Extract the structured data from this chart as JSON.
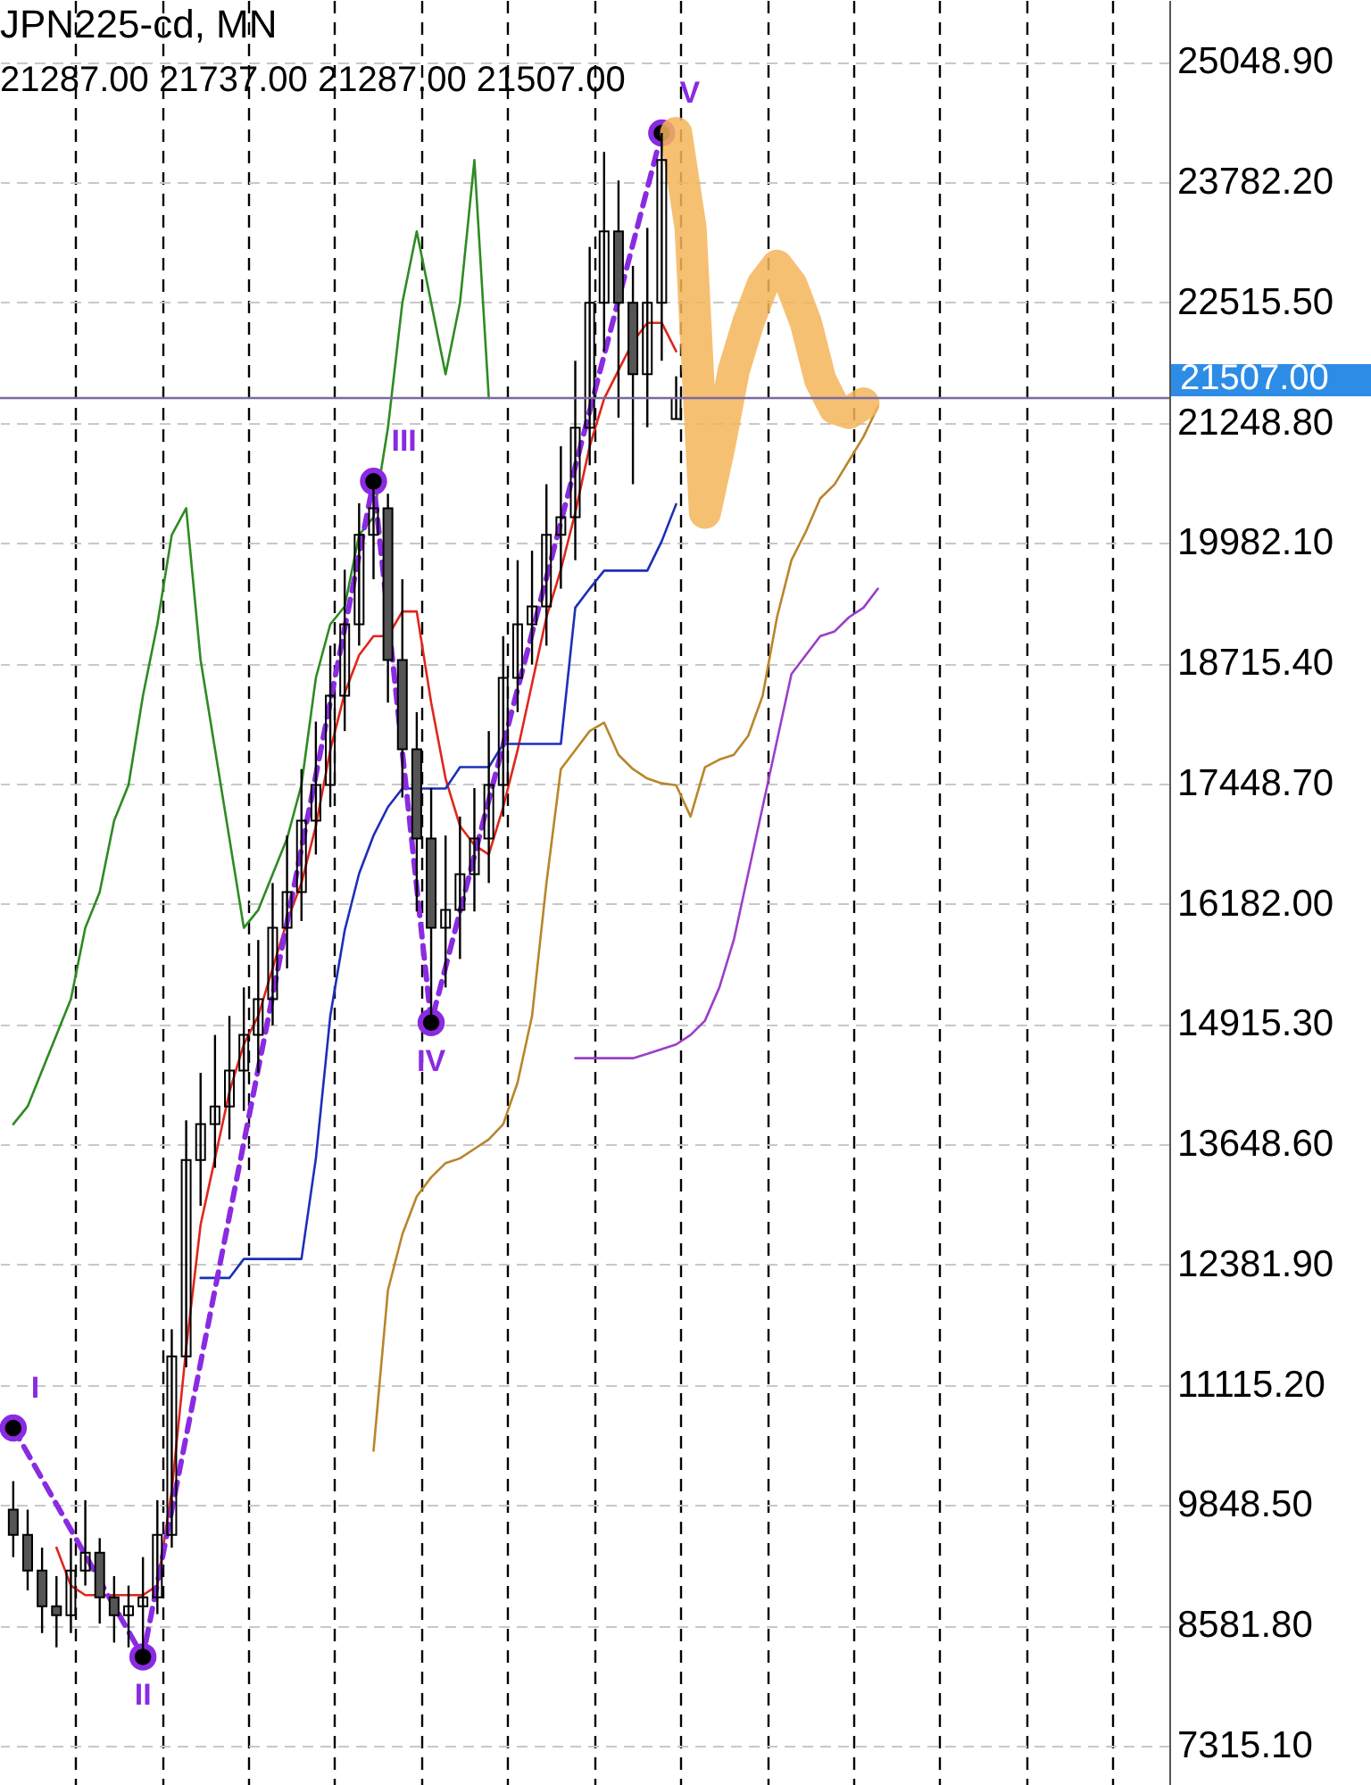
{
  "chart_data": {
    "type": "candlestick",
    "title": "JPN225-cd, MN",
    "subtitle": "21287.00 21737.00 21287.00 21507.00",
    "categories": [
      null,
      null,
      null,
      null,
      null,
      null,
      null,
      null,
      null,
      null,
      null,
      null,
      null,
      null,
      null,
      null,
      null,
      null,
      null,
      null,
      null,
      null,
      null,
      null,
      null,
      null,
      null,
      null,
      null,
      null,
      null,
      null,
      null,
      null,
      null,
      null,
      null,
      null,
      null,
      null,
      null,
      null,
      null,
      null,
      null,
      null,
      null,
      null,
      null,
      null,
      null,
      null,
      null,
      null,
      null,
      null,
      null,
      null,
      null,
      null,
      null,
      null,
      null,
      null,
      null,
      null,
      null,
      null,
      null,
      null,
      null,
      null,
      null,
      null,
      null,
      null,
      null,
      null,
      null,
      null
    ],
    "ohlc": [
      [
        9800,
        10100,
        9300,
        9534
      ],
      [
        9534,
        9800,
        8950,
        9158
      ],
      [
        9158,
        9400,
        8500,
        8782
      ],
      [
        8782,
        9100,
        8350,
        8688
      ],
      [
        8688,
        9500,
        8500,
        9158
      ],
      [
        9158,
        9900,
        9000,
        9346
      ],
      [
        9346,
        9500,
        8600,
        8876
      ],
      [
        8876,
        9100,
        8400,
        8688
      ],
      [
        8688,
        9000,
        8350,
        8782
      ],
      [
        8782,
        9300,
        8250,
        8876
      ],
      [
        8876,
        9900,
        8700,
        9534
      ],
      [
        9534,
        11700,
        9400,
        11415
      ],
      [
        11415,
        13900,
        11300,
        13483
      ],
      [
        13483,
        14400,
        13000,
        13860
      ],
      [
        13860,
        14800,
        13400,
        14047
      ],
      [
        14047,
        15000,
        13700,
        14424
      ],
      [
        14424,
        15300,
        14000,
        14800
      ],
      [
        14800,
        15800,
        14400,
        15176
      ],
      [
        15176,
        16400,
        14900,
        15928
      ],
      [
        15928,
        16900,
        15500,
        16304
      ],
      [
        16304,
        17600,
        16000,
        17056
      ],
      [
        17056,
        18100,
        16700,
        17433
      ],
      [
        17433,
        18900,
        17200,
        18373
      ],
      [
        18373,
        19700,
        18000,
        19125
      ],
      [
        19125,
        20400,
        18900,
        20066
      ],
      [
        20066,
        20630,
        19600,
        20347
      ],
      [
        20347,
        20500,
        18300,
        18749
      ],
      [
        18749,
        19600,
        17300,
        17809
      ],
      [
        17809,
        18200,
        16100,
        16868
      ],
      [
        16868,
        17400,
        14930,
        15928
      ],
      [
        15928,
        16900,
        15300,
        16116
      ],
      [
        16116,
        17100,
        15600,
        16492
      ],
      [
        16492,
        17400,
        16100,
        16868
      ],
      [
        16868,
        18000,
        16400,
        17433
      ],
      [
        17433,
        19000,
        17100,
        18561
      ],
      [
        18561,
        19800,
        18200,
        19125
      ],
      [
        19125,
        19900,
        18700,
        19313
      ],
      [
        19313,
        20600,
        18900,
        20066
      ],
      [
        20066,
        21000,
        19500,
        20253
      ],
      [
        20253,
        21900,
        19800,
        21194
      ],
      [
        21194,
        23100,
        20800,
        22510
      ],
      [
        22510,
        24100,
        22000,
        23262
      ],
      [
        23262,
        23800,
        21300,
        22510
      ],
      [
        22510,
        22900,
        20600,
        21758
      ],
      [
        21758,
        23300,
        21200,
        22510
      ],
      [
        22510,
        24300,
        21900,
        24015
      ],
      [
        21287,
        21737,
        21287,
        21507
      ],
      null,
      null,
      null,
      null,
      null,
      null,
      null,
      null,
      null,
      null,
      null,
      null,
      null,
      null,
      null,
      null,
      null,
      null,
      null,
      null,
      null,
      null,
      null,
      null,
      null,
      null,
      null,
      null,
      null,
      null,
      null,
      null,
      null
    ],
    "series": [
      {
        "type": "line",
        "color": "#2e8b22",
        "values": [
          13860,
          14047,
          14424,
          14800,
          15176,
          15928,
          16304,
          17056,
          17433,
          18373,
          19125,
          20066,
          20347,
          18749,
          17809,
          16868,
          15928,
          16116,
          16492,
          16868,
          17433,
          18561,
          19125,
          19313,
          20066,
          20253,
          21194,
          22510,
          23262,
          22510,
          21758,
          22510,
          24015,
          21507,
          null,
          null,
          null,
          null,
          null,
          null,
          null,
          null,
          null,
          null,
          null,
          null,
          null,
          null,
          null,
          null,
          null,
          null,
          null,
          null,
          null,
          null,
          null,
          null,
          null,
          null,
          null,
          null,
          null,
          null,
          null,
          null,
          null,
          null,
          null,
          null,
          null,
          null,
          null,
          null,
          null,
          null,
          null,
          null,
          null,
          null
        ]
      },
      {
        "type": "line",
        "color": "#e0261b",
        "values": [
          null,
          null,
          null,
          9400,
          9000,
          8900,
          8900,
          8900,
          8900,
          8900,
          9000,
          10000,
          11500,
          12800,
          13500,
          14200,
          14700,
          15000,
          15500,
          16000,
          16400,
          17000,
          17800,
          18400,
          18800,
          19000,
          19000,
          19260,
          19260,
          18300,
          17500,
          17000,
          16800,
          16700,
          17200,
          17800,
          18500,
          19200,
          19700,
          20300,
          21000,
          21500,
          21800,
          22100,
          22300,
          22300,
          22000,
          null,
          null,
          null,
          null,
          null,
          null,
          null,
          null,
          null,
          null,
          null,
          null,
          null,
          null,
          null,
          null,
          null,
          null,
          null,
          null,
          null,
          null,
          null,
          null,
          null,
          null,
          null,
          null,
          null,
          null,
          null,
          null,
          null
        ]
      },
      {
        "type": "line",
        "color": "#1c2fb8",
        "values": [
          null,
          null,
          null,
          null,
          null,
          null,
          null,
          null,
          null,
          null,
          null,
          null,
          null,
          12240,
          12240,
          12240,
          12440,
          12440,
          12440,
          12440,
          12440,
          13500,
          15000,
          15900,
          16500,
          16900,
          17200,
          17395,
          17395,
          17395,
          17395,
          17620,
          17620,
          17620,
          17865,
          17865,
          17865,
          17865,
          17865,
          19300,
          19500,
          19690,
          19690,
          19690,
          19690,
          20000,
          20390,
          null,
          null,
          null,
          null,
          null,
          null,
          null,
          null,
          null,
          null,
          null,
          null,
          null,
          null,
          null,
          null,
          null,
          null,
          null,
          null,
          null,
          null,
          null,
          null,
          null,
          null,
          null,
          null,
          null,
          null,
          null,
          null,
          null
        ]
      },
      {
        "type": "line",
        "color": "#b8862b",
        "values": [
          null,
          null,
          null,
          null,
          null,
          null,
          null,
          null,
          null,
          null,
          null,
          null,
          null,
          null,
          null,
          null,
          null,
          null,
          null,
          null,
          null,
          null,
          null,
          null,
          null,
          10420,
          12110,
          12700,
          13100,
          13300,
          13450,
          13500,
          13600,
          13700,
          13860,
          14300,
          15000,
          16400,
          17600,
          17800,
          18000,
          18090,
          17750,
          17600,
          17500,
          17450,
          17430,
          17100,
          17620,
          17700,
          17750,
          17950,
          18370,
          19200,
          19800,
          20100,
          20450,
          20600,
          20850,
          21100,
          21420,
          null,
          null,
          null,
          null,
          null,
          null,
          null,
          null,
          null,
          null,
          null,
          null,
          null,
          null,
          null,
          null,
          null,
          null,
          null
        ]
      },
      {
        "type": "line",
        "color": "#9b3fc8",
        "values": [
          null,
          null,
          null,
          null,
          null,
          null,
          null,
          null,
          null,
          null,
          null,
          null,
          null,
          null,
          null,
          null,
          null,
          null,
          null,
          null,
          null,
          null,
          null,
          null,
          null,
          null,
          null,
          null,
          null,
          null,
          null,
          null,
          null,
          null,
          null,
          null,
          null,
          null,
          null,
          14555,
          14555,
          14555,
          14555,
          14555,
          14600,
          14650,
          14700,
          14800,
          14950,
          15300,
          15800,
          16500,
          17200,
          17900,
          18600,
          18800,
          19000,
          19050,
          19200,
          19300,
          19500,
          null,
          null,
          null,
          null,
          null,
          null,
          null,
          null,
          null,
          null,
          null,
          null,
          null,
          null,
          null,
          null,
          null,
          null,
          null
        ]
      },
      {
        "type": "line",
        "color": "#8a2be2",
        "line_style": "dashed",
        "marker": "circle",
        "values": [
          10660,
          null,
          null,
          null,
          null,
          null,
          null,
          null,
          null,
          8250,
          null,
          null,
          null,
          null,
          null,
          null,
          null,
          null,
          null,
          null,
          null,
          null,
          null,
          null,
          null,
          20630,
          null,
          null,
          null,
          14930,
          null,
          null,
          null,
          null,
          null,
          null,
          null,
          null,
          null,
          null,
          null,
          null,
          null,
          null,
          null,
          24300,
          null,
          null,
          null,
          null,
          null,
          null,
          null,
          null,
          null,
          null,
          null,
          null,
          null,
          null,
          null,
          null,
          null,
          null,
          null,
          null,
          null,
          null,
          null,
          null,
          null,
          null,
          null,
          null,
          null,
          null,
          null,
          null,
          null,
          null
        ],
        "value_labels": [
          "I",
          null,
          null,
          null,
          null,
          null,
          null,
          null,
          null,
          "II",
          null,
          null,
          null,
          null,
          null,
          null,
          null,
          null,
          null,
          null,
          null,
          null,
          null,
          null,
          null,
          "III",
          null,
          null,
          null,
          "IV",
          null,
          null,
          null,
          null,
          null,
          null,
          null,
          null,
          null,
          null,
          null,
          null,
          null,
          null,
          null,
          "V",
          null,
          null,
          null,
          null,
          null,
          null,
          null,
          null,
          null,
          null,
          null,
          null,
          null,
          null,
          null,
          null,
          null,
          null,
          null,
          null,
          null,
          null,
          null,
          null,
          null,
          null,
          null,
          null,
          null,
          null,
          null,
          null,
          null,
          null
        ]
      },
      {
        "type": "line",
        "color": "#f5b55a",
        "values": [
          null,
          null,
          null,
          null,
          null,
          null,
          null,
          null,
          null,
          null,
          null,
          null,
          null,
          null,
          null,
          null,
          null,
          null,
          null,
          null,
          null,
          null,
          null,
          null,
          null,
          null,
          null,
          null,
          null,
          null,
          null,
          null,
          null,
          null,
          null,
          null,
          null,
          null,
          null,
          null,
          null,
          null,
          null,
          null,
          null,
          null,
          24300,
          23300,
          20300,
          21000,
          21800,
          22300,
          22700,
          22900,
          22700,
          22300,
          21700,
          21400,
          21350,
          21450,
          null,
          null,
          null,
          null,
          null,
          null,
          null,
          null,
          null,
          null,
          null,
          null,
          null,
          null,
          null,
          null,
          null,
          null,
          null,
          null
        ]
      }
    ],
    "ylim": [
      6900,
      25700
    ],
    "yticks": [
      {
        "value": 25048.9,
        "label": "25048.90"
      },
      {
        "value": 23782.2,
        "label": "23782.20"
      },
      {
        "value": 22515.5,
        "label": "22515.50"
      },
      {
        "value": 21248.8,
        "label": "21248.80"
      },
      {
        "value": 19982.1,
        "label": "19982.10"
      },
      {
        "value": 18715.4,
        "label": "18715.40"
      },
      {
        "value": 17448.7,
        "label": "17448.70"
      },
      {
        "value": 16182.0,
        "label": "16182.00"
      },
      {
        "value": 14915.3,
        "label": "14915.30"
      },
      {
        "value": 13648.6,
        "label": "13648.60"
      },
      {
        "value": 12381.9,
        "label": "12381.90"
      },
      {
        "value": 11115.2,
        "label": "11115.20"
      },
      {
        "value": 9848.5,
        "label": "9848.50"
      },
      {
        "value": 8581.8,
        "label": "8581.80"
      },
      {
        "value": 7315.1,
        "label": "7315.10"
      }
    ],
    "ref_lines": [
      {
        "axis": "y",
        "value": 21507,
        "label": "21507.00",
        "color": "#7a6a9e"
      }
    ],
    "grid": true,
    "tick_labels": "y"
  }
}
